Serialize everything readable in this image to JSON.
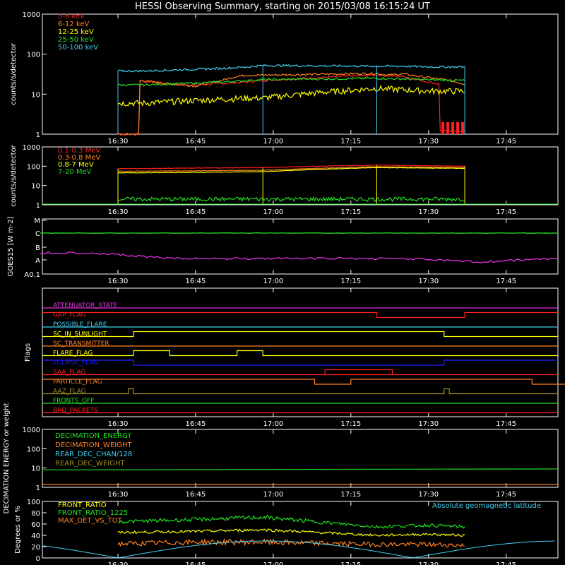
{
  "title": "HESSI Observing Summary, starting on 2015/03/08 16:15:24 UT",
  "time_ticks": [
    "16:30",
    "16:45",
    "17:00",
    "17:15",
    "17:30",
    "17:45"
  ],
  "colors": {
    "red": "#ff2020",
    "orange": "#ff8020",
    "yellow": "#ffff00",
    "green": "#20e020",
    "cyan": "#40d0f0",
    "magenta": "#e030e0",
    "blue": "#2020ff",
    "olive": "#a09020",
    "pink": "#ff30a0",
    "white": "#ffffff"
  },
  "chart_data": [
    {
      "type": "line",
      "panel": "counts_low",
      "ylabel": "counts/s/detector",
      "ylog": true,
      "ylim": [
        1,
        1000
      ],
      "yticks": [
        "1",
        "10",
        "100",
        "1000"
      ],
      "series": [
        {
          "name": "3-6 keV",
          "color": "#ff2020",
          "x": [
            "16:30",
            "16:34",
            "16:34",
            "16:40",
            "16:45",
            "16:55",
            "16:58",
            "17:20",
            "17:25",
            "17:30",
            "17:32",
            "17:32",
            "17:37"
          ],
          "y": [
            1,
            1,
            22,
            18,
            17,
            20,
            22,
            30,
            28,
            20,
            18,
            1.2,
            1.2
          ]
        },
        {
          "name": "6-12 keV",
          "color": "#ff8020",
          "x": [
            "16:30",
            "16:34",
            "16:34",
            "16:37",
            "16:40",
            "16:45",
            "16:50",
            "16:53",
            "16:55",
            "16:58",
            "17:20",
            "17:22",
            "17:25",
            "17:28",
            "17:31",
            "17:34",
            "17:37"
          ],
          "y": [
            1,
            1,
            22,
            20,
            18,
            16,
            22,
            28,
            30,
            30,
            33,
            30,
            32,
            28,
            25,
            22,
            18
          ]
        },
        {
          "name": "12-25 keV",
          "color": "#ffff00",
          "x": [
            "16:30",
            "16:35",
            "16:40",
            "16:45",
            "16:50",
            "16:55",
            "16:58",
            "17:20",
            "17:25",
            "17:30",
            "17:37"
          ],
          "y": [
            6,
            6,
            6.5,
            7,
            7.5,
            8,
            8,
            14,
            13,
            12,
            12
          ]
        },
        {
          "name": "25-50 keV",
          "color": "#20e020",
          "x": [
            "16:30",
            "16:35",
            "16:40",
            "16:45",
            "16:50",
            "16:55",
            "16:58",
            "17:20",
            "17:25",
            "17:30",
            "17:37"
          ],
          "y": [
            17,
            17,
            18,
            19,
            20,
            22,
            23,
            25,
            24,
            23,
            22
          ]
        },
        {
          "name": "50-100 keV",
          "color": "#40d0f0",
          "x": [
            "16:30",
            "16:35",
            "16:40",
            "16:45",
            "16:50",
            "16:55",
            "16:58",
            "17:20",
            "17:25",
            "17:30",
            "17:37"
          ],
          "y": [
            38,
            38,
            40,
            42,
            44,
            48,
            52,
            50,
            50,
            48,
            48
          ]
        }
      ]
    },
    {
      "type": "line",
      "panel": "counts_high",
      "ylabel": "counts/s/detector",
      "ylog": true,
      "ylim": [
        1,
        1000
      ],
      "yticks": [
        "1",
        "10",
        "100",
        "1000"
      ],
      "series": [
        {
          "name": "0.1-0.3 MeV",
          "color": "#ff2020",
          "x": [
            "16:30",
            "16:45",
            "16:58",
            "17:20",
            "17:30",
            "17:37"
          ],
          "y": [
            75,
            80,
            85,
            115,
            105,
            100
          ]
        },
        {
          "name": "0.3-0.8 MeV",
          "color": "#ff8020",
          "x": [
            "16:30",
            "16:45",
            "16:58",
            "17:20",
            "17:30",
            "17:37"
          ],
          "y": [
            55,
            58,
            62,
            95,
            88,
            85
          ]
        },
        {
          "name": "0.8-7 MeV",
          "color": "#ffff00",
          "x": [
            "16:30",
            "16:45",
            "16:58",
            "17:20",
            "17:30",
            "17:37"
          ],
          "y": [
            45,
            48,
            52,
            85,
            80,
            78
          ]
        },
        {
          "name": "7-20 MeV",
          "color": "#20e020",
          "x": [
            "16:30",
            "16:45",
            "16:58",
            "17:20",
            "17:30",
            "17:37"
          ],
          "y": [
            2,
            2,
            2,
            2,
            2,
            2
          ]
        }
      ]
    },
    {
      "type": "line",
      "panel": "goes",
      "ylabel": "GOES15 [W m-2]",
      "ylim": [
        "A0.1",
        "M"
      ],
      "yticks": [
        "A0.1",
        "A",
        "B",
        "C",
        "M"
      ],
      "series": [
        {
          "name": "GOES long",
          "color": "#20e020",
          "x": [
            "16:15",
            "16:30",
            "16:45",
            "17:00",
            "17:15",
            "17:30",
            "17:45",
            "17:55"
          ],
          "y": [
            "C",
            "C",
            "C",
            "C",
            "C",
            "C",
            "C",
            "C"
          ]
        },
        {
          "name": "GOES short",
          "color": "#e030e0",
          "x": [
            "16:15",
            "16:25",
            "16:40",
            "16:55",
            "17:10",
            "17:25",
            "17:40",
            "17:55"
          ],
          "y": [
            "A+",
            "A+",
            "A",
            "A",
            "A",
            "A",
            "A-",
            "A"
          ]
        }
      ]
    },
    {
      "type": "line",
      "panel": "flags",
      "ylabel": "Flags",
      "series": [
        {
          "name": "ATTENUATOR_STATE",
          "color": "#e030e0"
        },
        {
          "name": "GAP_FLAG",
          "color": "#ff2020"
        },
        {
          "name": "POSSIBLE_FLARE",
          "color": "#40d0f0"
        },
        {
          "name": "SC_IN_SUNLIGHT",
          "color": "#ffff00"
        },
        {
          "name": "SC_TRANSMITTER",
          "color": "#ff8020"
        },
        {
          "name": "FLARE_FLAG",
          "color": "#ffff00"
        },
        {
          "name": "ECLIPSE_FLAG",
          "color": "#2020ff"
        },
        {
          "name": "SAA_FLAG",
          "color": "#ff2020"
        },
        {
          "name": "PARTICLE_FLAG",
          "color": "#ff8020"
        },
        {
          "name": "AAZ_FLAG",
          "color": "#a09020"
        },
        {
          "name": "FRONTS_OFF",
          "color": "#20e020"
        },
        {
          "name": "BAD_PACKETS",
          "color": "#ff2020"
        }
      ]
    },
    {
      "type": "line",
      "panel": "decimation",
      "ylabel": "DECIMATION ENERGY or weight",
      "ylog": true,
      "ylim": [
        1,
        1000
      ],
      "yticks": [
        "1",
        "10",
        "100",
        "1000"
      ],
      "series": [
        {
          "name": "DECIMATION_ENERGY",
          "color": "#20e020"
        },
        {
          "name": "DECIMATION_WEIGHT",
          "color": "#ff8020"
        },
        {
          "name": "REAR_DEC_CHAN/128",
          "color": "#40d0f0"
        },
        {
          "name": "REAR_DEC_WEIGHT",
          "color": "#a09020"
        }
      ]
    },
    {
      "type": "line",
      "panel": "ratios",
      "ylabel": "Degrees or %",
      "ylim": [
        0,
        100
      ],
      "yticks": [
        "0",
        "20",
        "40",
        "60",
        "80",
        "100"
      ],
      "annotation": "Absolute geomagnetic latitude",
      "series": [
        {
          "name": "FRONT_RATIO",
          "color": "#ffff00",
          "x": [
            "16:30",
            "16:45",
            "16:58",
            "17:20",
            "17:30",
            "17:37"
          ],
          "y": [
            45,
            47,
            50,
            40,
            42,
            40
          ]
        },
        {
          "name": "FRONT_RATIO_1225",
          "color": "#20e020",
          "x": [
            "16:30",
            "16:45",
            "16:58",
            "17:20",
            "17:30",
            "17:37"
          ],
          "y": [
            64,
            68,
            72,
            55,
            58,
            55
          ]
        },
        {
          "name": "MAX_DET_VS_TOT",
          "color": "#ff8020",
          "x": [
            "16:30",
            "16:45",
            "16:58",
            "17:20",
            "17:30",
            "17:37"
          ],
          "y": [
            25,
            28,
            28,
            24,
            24,
            22
          ]
        }
      ]
    }
  ]
}
